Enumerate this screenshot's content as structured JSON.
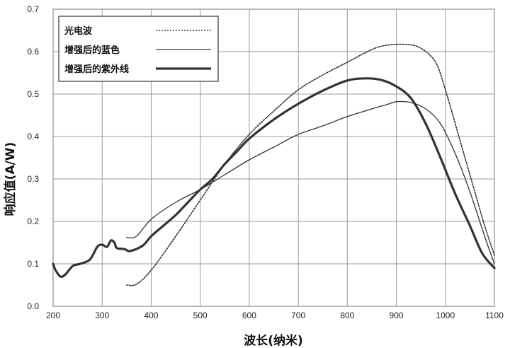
{
  "chart_data": {
    "type": "line",
    "xlabel": "波长(纳米)",
    "ylabel": "响应值(A/W)",
    "xlim": [
      200,
      1100
    ],
    "ylim": [
      0.0,
      0.7
    ],
    "x_ticks": [
      "200",
      "300",
      "400",
      "500",
      "600",
      "700",
      "800",
      "900",
      "1000",
      "1100"
    ],
    "y_ticks": [
      "0.0",
      "0.1",
      "0.2",
      "0.3",
      "0.4",
      "0.5",
      "0.6",
      "0.7"
    ],
    "grid": true,
    "legend_position": "top-left",
    "series": [
      {
        "name": "光电波",
        "style": "dotted",
        "color": "#333333",
        "points": [
          [
            350,
            0.05
          ],
          [
            370,
            0.052
          ],
          [
            400,
            0.085
          ],
          [
            450,
            0.165
          ],
          [
            500,
            0.25
          ],
          [
            550,
            0.335
          ],
          [
            600,
            0.405
          ],
          [
            650,
            0.46
          ],
          [
            700,
            0.51
          ],
          [
            750,
            0.545
          ],
          [
            800,
            0.575
          ],
          [
            850,
            0.605
          ],
          [
            880,
            0.615
          ],
          [
            920,
            0.617
          ],
          [
            950,
            0.608
          ],
          [
            980,
            0.575
          ],
          [
            1000,
            0.51
          ],
          [
            1030,
            0.39
          ],
          [
            1060,
            0.27
          ],
          [
            1080,
            0.19
          ],
          [
            1100,
            0.12
          ]
        ]
      },
      {
        "name": "增强后的蓝色",
        "style": "thin",
        "color": "#333333",
        "points": [
          [
            350,
            0.162
          ],
          [
            370,
            0.165
          ],
          [
            400,
            0.205
          ],
          [
            450,
            0.245
          ],
          [
            500,
            0.275
          ],
          [
            550,
            0.31
          ],
          [
            600,
            0.345
          ],
          [
            650,
            0.375
          ],
          [
            700,
            0.405
          ],
          [
            750,
            0.425
          ],
          [
            800,
            0.447
          ],
          [
            850,
            0.465
          ],
          [
            880,
            0.475
          ],
          [
            900,
            0.482
          ],
          [
            930,
            0.48
          ],
          [
            960,
            0.465
          ],
          [
            990,
            0.43
          ],
          [
            1020,
            0.36
          ],
          [
            1050,
            0.27
          ],
          [
            1080,
            0.165
          ],
          [
            1100,
            0.1
          ]
        ]
      },
      {
        "name": "增强后的紫外线",
        "style": "thick",
        "color": "#333333",
        "points": [
          [
            200,
            0.1
          ],
          [
            205,
            0.085
          ],
          [
            215,
            0.07
          ],
          [
            225,
            0.075
          ],
          [
            240,
            0.095
          ],
          [
            255,
            0.1
          ],
          [
            275,
            0.11
          ],
          [
            290,
            0.14
          ],
          [
            300,
            0.145
          ],
          [
            310,
            0.14
          ],
          [
            318,
            0.155
          ],
          [
            325,
            0.15
          ],
          [
            330,
            0.137
          ],
          [
            345,
            0.135
          ],
          [
            355,
            0.13
          ],
          [
            370,
            0.135
          ],
          [
            385,
            0.145
          ],
          [
            400,
            0.165
          ],
          [
            425,
            0.19
          ],
          [
            450,
            0.215
          ],
          [
            475,
            0.245
          ],
          [
            500,
            0.275
          ],
          [
            525,
            0.3
          ],
          [
            550,
            0.335
          ],
          [
            575,
            0.365
          ],
          [
            600,
            0.395
          ],
          [
            650,
            0.44
          ],
          [
            700,
            0.477
          ],
          [
            750,
            0.508
          ],
          [
            800,
            0.532
          ],
          [
            840,
            0.537
          ],
          [
            870,
            0.533
          ],
          [
            900,
            0.518
          ],
          [
            930,
            0.49
          ],
          [
            960,
            0.43
          ],
          [
            990,
            0.35
          ],
          [
            1020,
            0.265
          ],
          [
            1050,
            0.19
          ],
          [
            1075,
            0.125
          ],
          [
            1100,
            0.09
          ]
        ]
      }
    ]
  }
}
